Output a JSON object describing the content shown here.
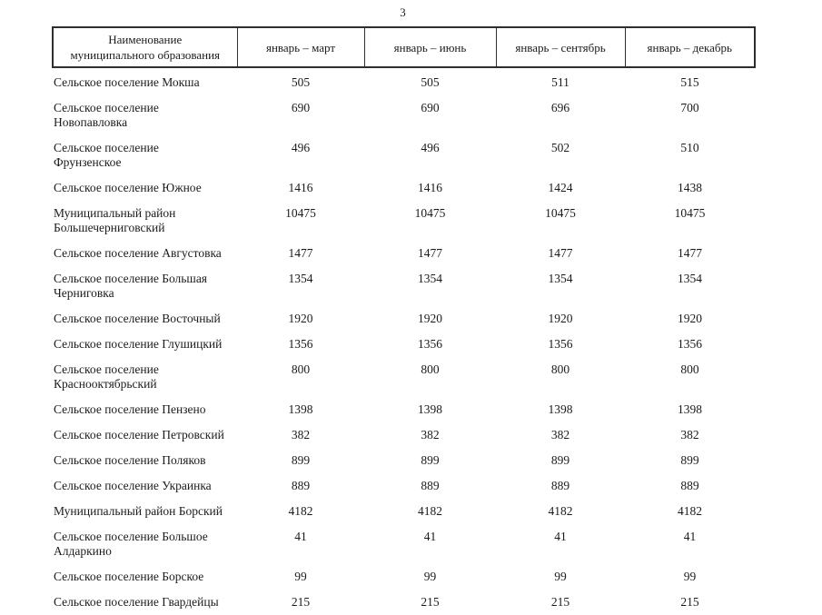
{
  "page": {
    "number": "3"
  },
  "table": {
    "columns": [
      "Наименование муниципального образования",
      "январь – март",
      "январь – июнь",
      "январь – сентябрь",
      "январь – декабрь"
    ],
    "rows": [
      {
        "name": "Сельское поселение Мокша",
        "values": [
          "505",
          "505",
          "511",
          "515"
        ]
      },
      {
        "name": "Сельское поселение Новопавловка",
        "values": [
          "690",
          "690",
          "696",
          "700"
        ]
      },
      {
        "name": "Сельское поселение Фрунзенское",
        "values": [
          "496",
          "496",
          "502",
          "510"
        ]
      },
      {
        "name": "Сельское поселение Южное",
        "values": [
          "1416",
          "1416",
          "1424",
          "1438"
        ]
      },
      {
        "name": "Муниципальный район Большечерниговский",
        "values": [
          "10475",
          "10475",
          "10475",
          "10475"
        ]
      },
      {
        "name": "Сельское поселение Августовка",
        "values": [
          "1477",
          "1477",
          "1477",
          "1477"
        ]
      },
      {
        "name": "Сельское поселение Большая Черниговка",
        "values": [
          "1354",
          "1354",
          "1354",
          "1354"
        ]
      },
      {
        "name": "Сельское поселение Восточный",
        "values": [
          "1920",
          "1920",
          "1920",
          "1920"
        ]
      },
      {
        "name": "Сельское поселение Глушицкий",
        "values": [
          "1356",
          "1356",
          "1356",
          "1356"
        ]
      },
      {
        "name": "Сельское поселение Краснооктябрьский",
        "values": [
          "800",
          "800",
          "800",
          "800"
        ]
      },
      {
        "name": "Сельское поселение Пензено",
        "values": [
          "1398",
          "1398",
          "1398",
          "1398"
        ]
      },
      {
        "name": "Сельское поселение Петровский",
        "values": [
          "382",
          "382",
          "382",
          "382"
        ]
      },
      {
        "name": "Сельское поселение Поляков",
        "values": [
          "899",
          "899",
          "899",
          "899"
        ]
      },
      {
        "name": "Сельское поселение Украинка",
        "values": [
          "889",
          "889",
          "889",
          "889"
        ]
      },
      {
        "name": "Муниципальный район Борский",
        "values": [
          "4182",
          "4182",
          "4182",
          "4182"
        ]
      },
      {
        "name": "Сельское поселение Большое Алдаркино",
        "values": [
          "41",
          "41",
          "41",
          "41"
        ]
      },
      {
        "name": "Сельское поселение Борское",
        "values": [
          "99",
          "99",
          "99",
          "99"
        ]
      },
      {
        "name": "Сельское поселение Гвардейцы",
        "values": [
          "215",
          "215",
          "215",
          "215"
        ]
      }
    ]
  }
}
